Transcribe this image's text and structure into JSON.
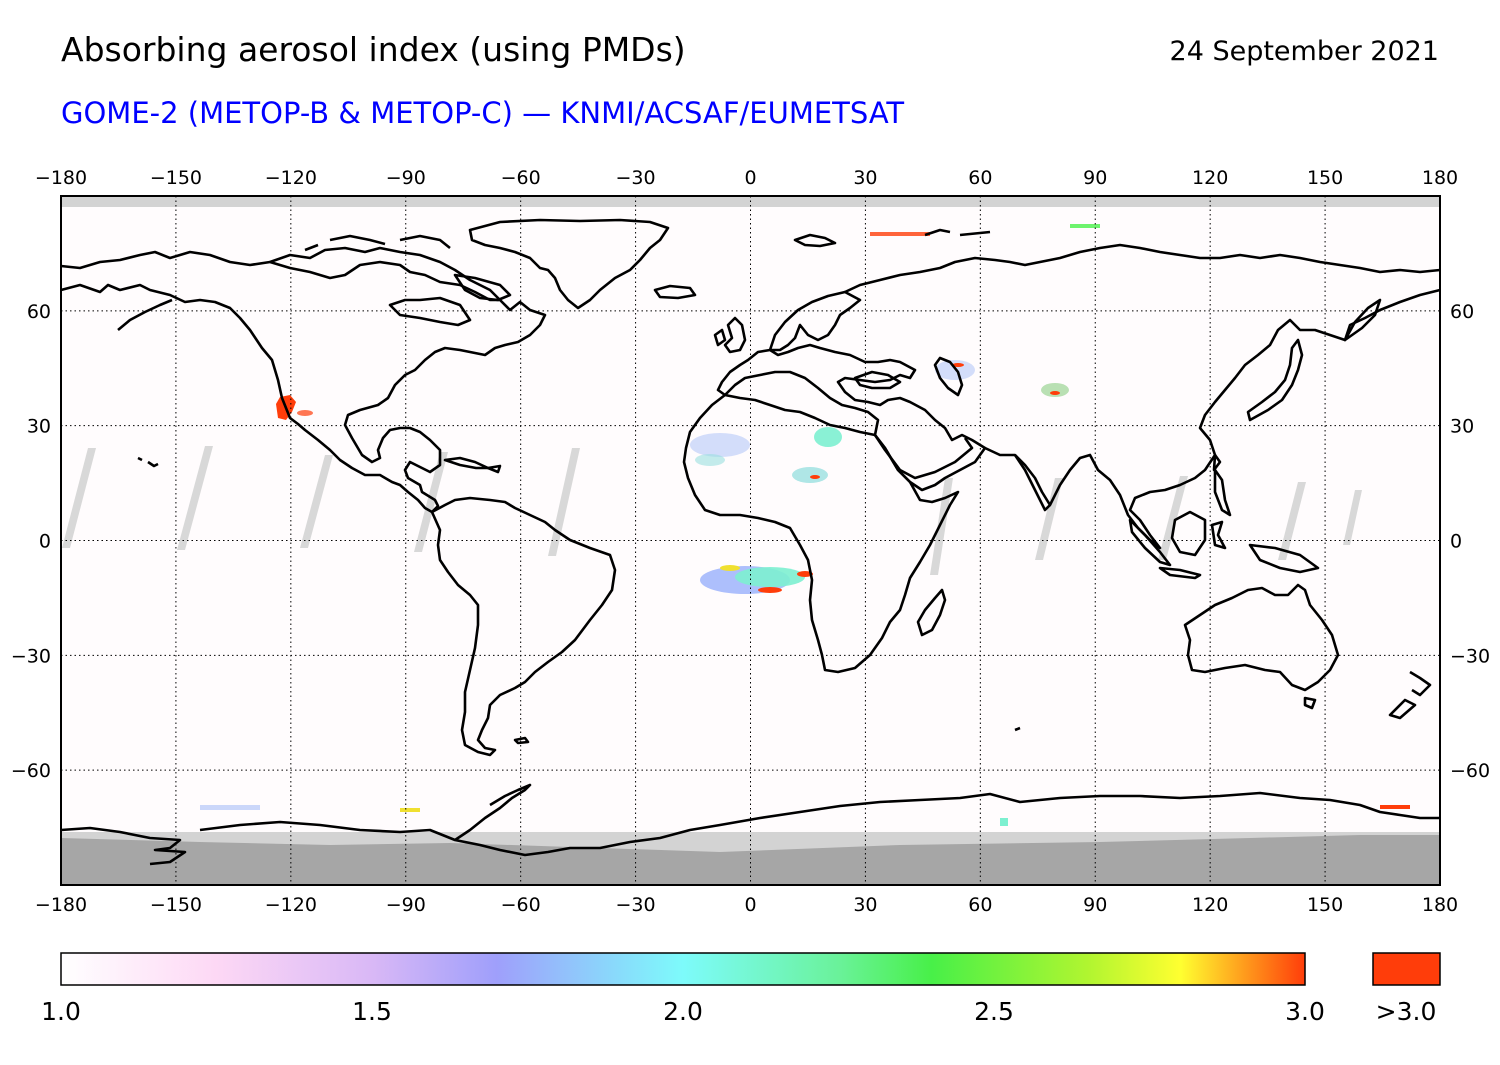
{
  "header": {
    "title": "Absorbing aerosol index (using PMDs)",
    "date": "24 September 2021",
    "subtitle": "GOME-2 (METOP-B & METOP-C) — KNMI/ACSAF/EUMETSAT"
  },
  "map": {
    "projection": "plate-carree",
    "lon_range": [
      -180,
      180
    ],
    "lat_range": [
      -90,
      90
    ],
    "lon_ticks": [
      -180,
      -150,
      -120,
      -90,
      -60,
      -30,
      0,
      30,
      60,
      90,
      120,
      150,
      180
    ],
    "lat_ticks": [
      -60,
      -30,
      0,
      30,
      60
    ],
    "grid": "dotted",
    "no_data_color": "#d3d3d3",
    "polar_night_color": "#a6a6a6",
    "coastline_color": "#000000",
    "aerosol_plumes": [
      {
        "region": "california-wildfire",
        "lon": -122,
        "lat": 34,
        "level": "high"
      },
      {
        "region": "central-africa-biomass",
        "lon": 5,
        "lat": -10,
        "level": "medium-high"
      },
      {
        "region": "sahara-dust",
        "lon": 15,
        "lat": 20,
        "level": "medium"
      },
      {
        "region": "caspian",
        "lon": 53,
        "lat": 45,
        "level": "medium"
      },
      {
        "region": "central-asia",
        "lon": 80,
        "lat": 39,
        "level": "medium"
      }
    ]
  },
  "colorbar": {
    "min": 1.0,
    "max": 3.0,
    "tick_labels": [
      "1.0",
      "1.5",
      "2.0",
      "2.5",
      "3.0"
    ],
    "overflow_label": ">3.0",
    "overflow_color": "#ff3d0a",
    "stops": [
      {
        "value": 1.0,
        "color": "#ffffff"
      },
      {
        "value": 1.25,
        "color": "#fdd8f5"
      },
      {
        "value": 1.5,
        "color": "#d9b8f6"
      },
      {
        "value": 1.7,
        "color": "#9f9ffb"
      },
      {
        "value": 2.0,
        "color": "#7dfbfb"
      },
      {
        "value": 2.25,
        "color": "#6af29a"
      },
      {
        "value": 2.4,
        "color": "#48f048"
      },
      {
        "value": 2.65,
        "color": "#b0f530"
      },
      {
        "value": 2.8,
        "color": "#ffff30"
      },
      {
        "value": 3.0,
        "color": "#ff3d0a"
      }
    ]
  }
}
